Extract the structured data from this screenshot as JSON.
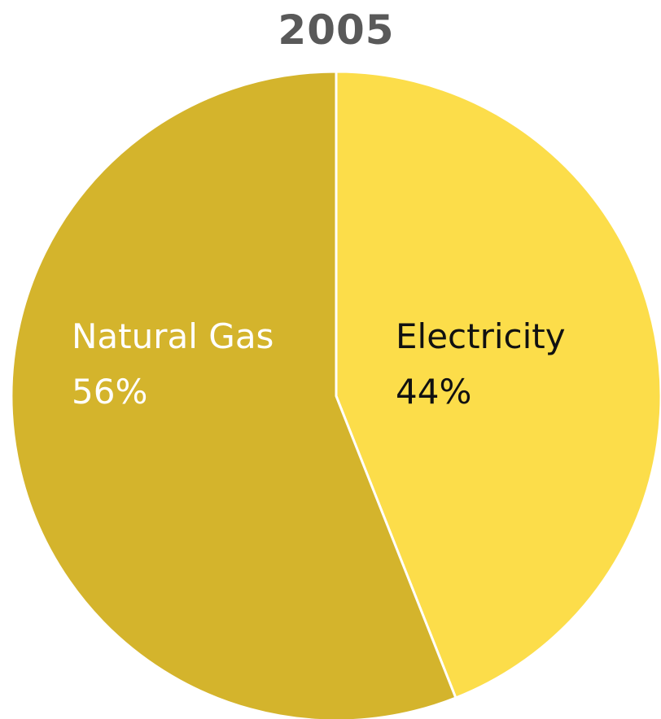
{
  "chart_data": {
    "type": "pie",
    "title": "2005",
    "slices": [
      {
        "label": "Electricity",
        "value": 44,
        "pct_label": "44%",
        "color": "#FCDD4A",
        "text_color": "#111111"
      },
      {
        "label": "Natural Gas",
        "value": 56,
        "pct_label": "56%",
        "color": "#D4B42C",
        "text_color": "#ffffff"
      }
    ],
    "legend": "none",
    "start_angle_deg": 0,
    "direction": "clockwise"
  }
}
